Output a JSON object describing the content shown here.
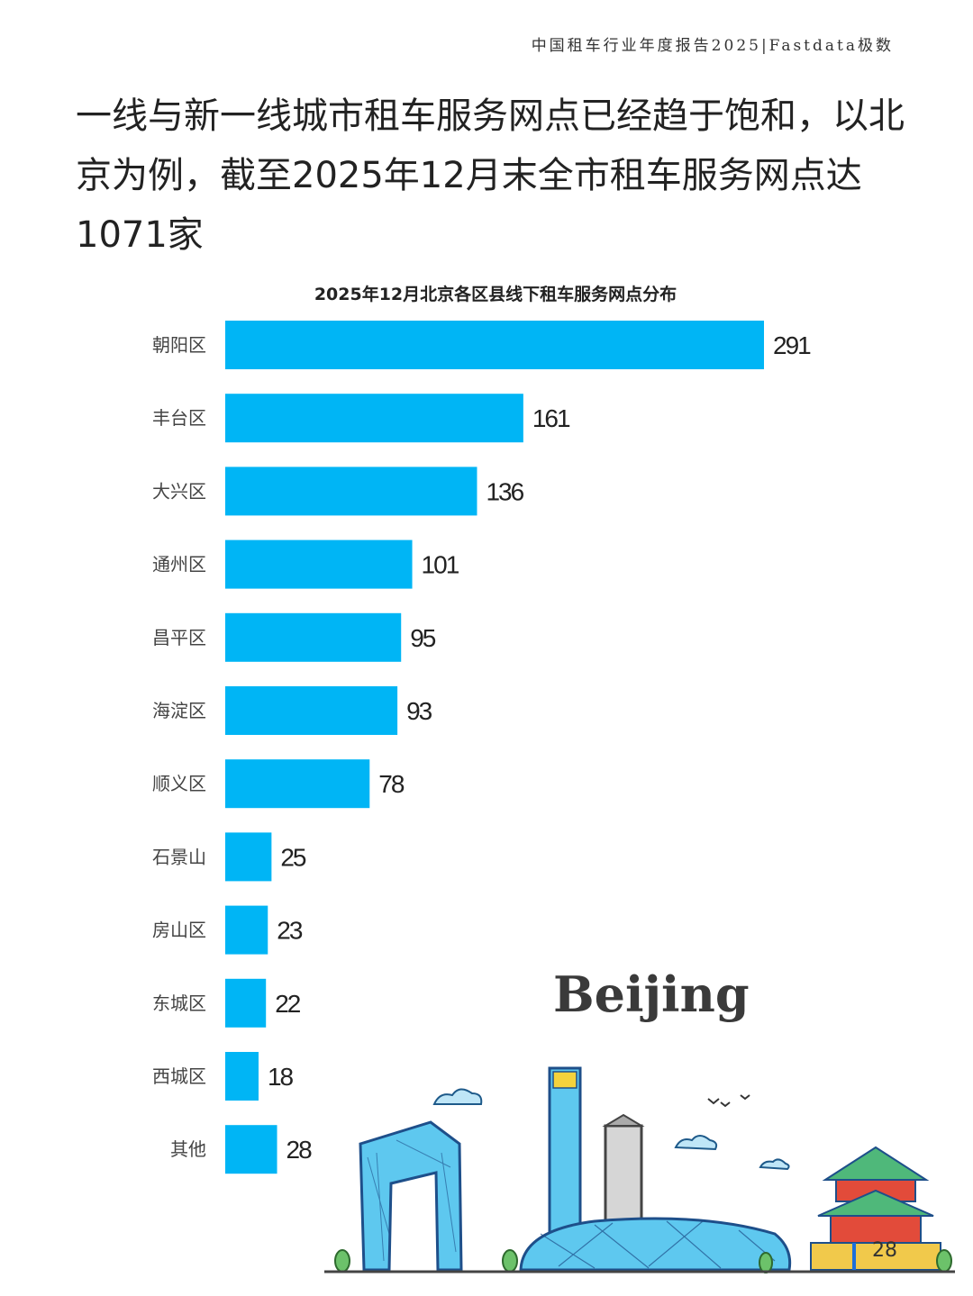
{
  "header": {
    "report_title": "中国租车行业年度报告2025|Fastdata极数"
  },
  "headline": "一线与新一线城市租车服务网点已经趋于饱和，以北京为例，截至2025年12月末全市租车服务网点达1071家",
  "illustration": {
    "city_word": "Beijing",
    "page_number": "28"
  },
  "colors": {
    "bar": "#00b5f5",
    "text": "#222222",
    "label": "#444444"
  },
  "chart_data": {
    "type": "bar",
    "orientation": "horizontal",
    "title": "2025年12月北京各区县线下租车服务网点分布",
    "categories": [
      "朝阳区",
      "丰台区",
      "大兴区",
      "通州区",
      "昌平区",
      "海淀区",
      "顺义区",
      "石景山",
      "房山区",
      "东城区",
      "西城区",
      "其他"
    ],
    "values": [
      291,
      161,
      136,
      101,
      95,
      93,
      78,
      25,
      23,
      22,
      18,
      28
    ],
    "xlim": [
      0,
      291
    ],
    "grid": false,
    "legend": "none",
    "data_labels": true
  }
}
